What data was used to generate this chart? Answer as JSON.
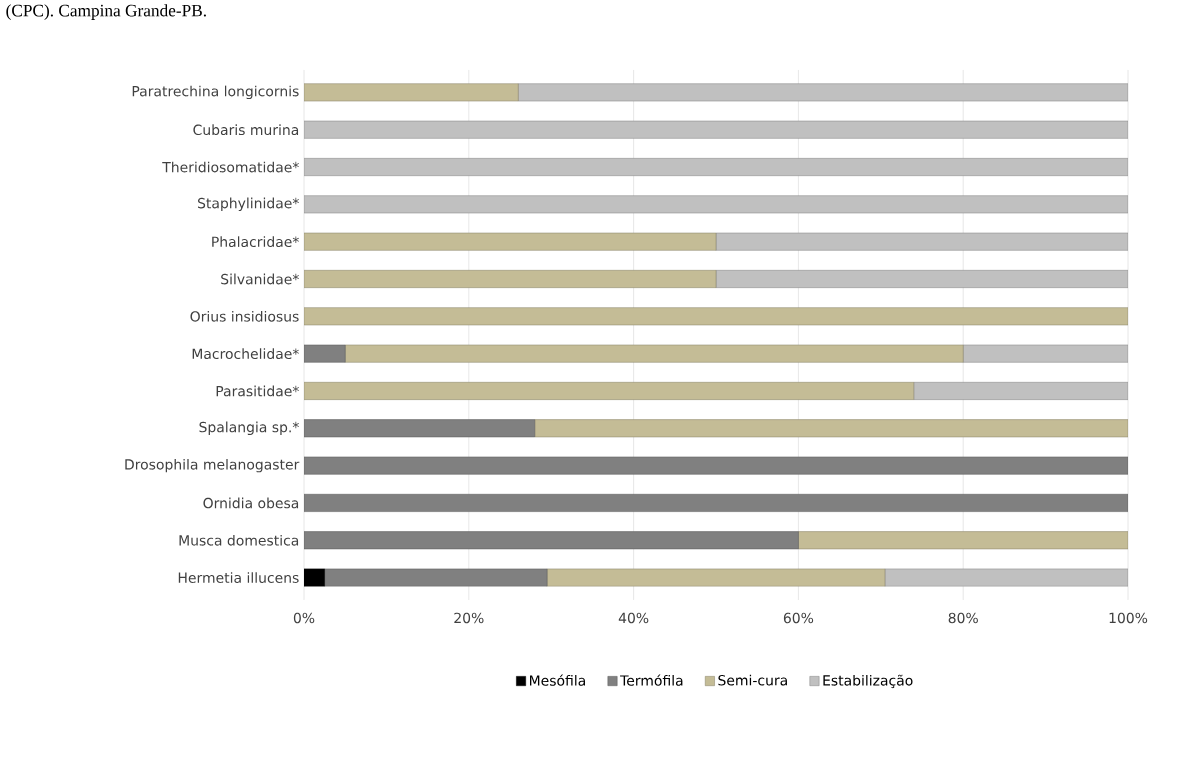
{
  "chart_data": {
    "type": "bar",
    "orientation": "horizontal",
    "stacked": true,
    "annotations": [
      "(CPC). Campina Grande-PB."
    ],
    "categories": [
      "Paratrechina longicornis",
      "Cubaris murina",
      "Theridiosomatidae*",
      "Staphylinidae*",
      "Phalacridae*",
      "Silvanidae*",
      "Orius insidiosus",
      "Macrochelidae*",
      "Parasitidae*",
      "Spalangia sp.*",
      "Drosophila melanogaster",
      "Ornidia obesa",
      "Musca domestica",
      "Hermetia illucens"
    ],
    "series": [
      {
        "name": "Mesófila",
        "color": "#000000",
        "values": [
          0,
          0,
          0,
          0,
          0,
          0,
          0,
          0,
          0,
          0,
          0,
          0,
          0,
          2.5
        ]
      },
      {
        "name": "Termófila",
        "color": "#808080",
        "values": [
          0,
          0,
          0,
          0,
          0,
          0,
          0,
          5,
          0,
          28,
          100,
          100,
          60,
          27
        ]
      },
      {
        "name": "Semi-cura",
        "color": "#c4bc96",
        "values": [
          26,
          0,
          0,
          0,
          50,
          50,
          100,
          75,
          74,
          72,
          0,
          0,
          40,
          41
        ]
      },
      {
        "name": "Estabilização",
        "color": "#c0c0c0",
        "values": [
          74,
          100,
          100,
          100,
          50,
          50,
          0,
          20,
          26,
          0,
          0,
          0,
          0,
          29.5
        ]
      }
    ],
    "xlim": [
      0,
      100
    ],
    "xticks": [
      {
        "value": 0,
        "label": "0%"
      },
      {
        "value": 20,
        "label": "20%"
      },
      {
        "value": 40,
        "label": "40%"
      },
      {
        "value": 60,
        "label": "60%"
      },
      {
        "value": 80,
        "label": "80%"
      },
      {
        "value": 100,
        "label": "100%"
      }
    ],
    "grid": "x",
    "legend": "bottom"
  }
}
